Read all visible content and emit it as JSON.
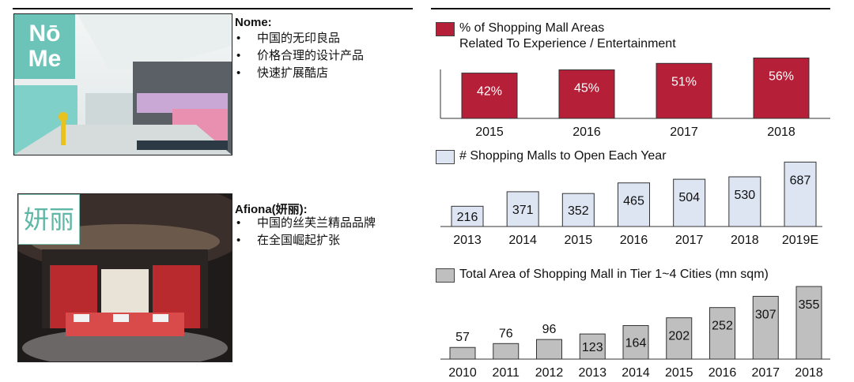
{
  "left": {
    "nome": {
      "logo": "NōMe",
      "title": "Nome:",
      "bullets": [
        "中国的无印良品",
        "价格合理的设计产品",
        "快速扩展酷店"
      ]
    },
    "afiona": {
      "logo": "妍丽",
      "title": "Afiona(妍丽):",
      "bullets": [
        "中国的丝芙兰精品品牌",
        "在全国崛起扩张"
      ]
    }
  },
  "chart_data": [
    {
      "type": "bar",
      "title": "% of Shopping Mall Areas\nRelated To Experience / Entertainment",
      "categories": [
        "2015",
        "2016",
        "2017",
        "2018"
      ],
      "values": [
        42,
        45,
        51,
        56
      ],
      "labels": [
        "42%",
        "45%",
        "51%",
        "56%"
      ],
      "color": "#b52038",
      "label_color": "#ffffff",
      "ylim": [
        0,
        60
      ]
    },
    {
      "type": "bar",
      "title": "# Shopping Malls to Open Each Year",
      "categories": [
        "2013",
        "2014",
        "2015",
        "2016",
        "2017",
        "2018",
        "2019E"
      ],
      "values": [
        216,
        371,
        352,
        465,
        504,
        530,
        687
      ],
      "labels": [
        "216",
        "371",
        "352",
        "465",
        "504",
        "530",
        "687"
      ],
      "color": "#dde4f2",
      "label_color": "#111111",
      "ylim": [
        0,
        690
      ]
    },
    {
      "type": "bar",
      "title": "Total Area of Shopping Mall in Tier 1~4 Cities (mn sqm)",
      "categories": [
        "2010",
        "2011",
        "2012",
        "2013",
        "2014",
        "2015",
        "2016",
        "2017",
        "2018"
      ],
      "values": [
        57,
        76,
        96,
        123,
        164,
        202,
        252,
        307,
        355
      ],
      "labels": [
        "57",
        "76",
        "96",
        "123",
        "164",
        "202",
        "252",
        "307",
        "355"
      ],
      "color": "#bfbfbf",
      "label_color": "#111111",
      "ylim": [
        0,
        355
      ]
    }
  ]
}
